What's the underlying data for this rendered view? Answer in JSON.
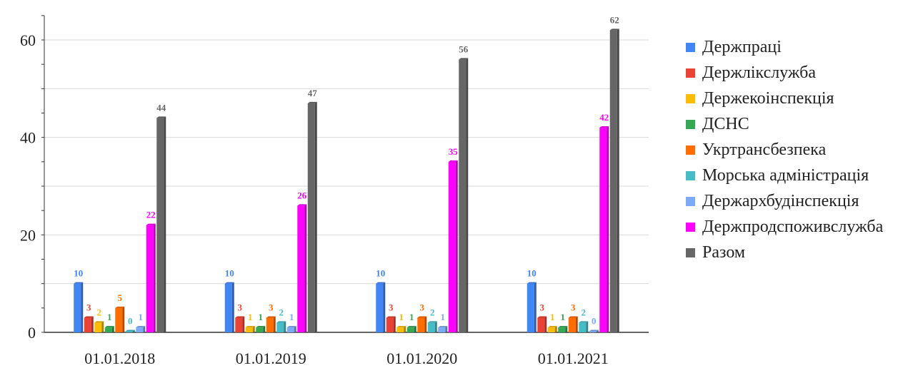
{
  "chart_data": {
    "type": "bar",
    "categories": [
      "01.01.2018",
      "01.01.2019",
      "01.01.2020",
      "01.01.2021"
    ],
    "yticks": [
      "0",
      "20",
      "40",
      "60"
    ],
    "ylim": [
      0,
      65
    ],
    "grid": true,
    "legend_position": "right",
    "series": [
      {
        "name": "Держпраці",
        "color": "#4285f4",
        "values": [
          10,
          10,
          10,
          10
        ],
        "labels": [
          "10",
          "10",
          "10",
          "10"
        ]
      },
      {
        "name": "Держлікслужба",
        "color": "#ea4335",
        "values": [
          3,
          3,
          3,
          3
        ],
        "labels": [
          "3",
          "3",
          "3",
          "3"
        ]
      },
      {
        "name": "Держекоінспекція",
        "color": "#fbbc04",
        "values": [
          2,
          1,
          1,
          1
        ],
        "labels": [
          "2",
          "1",
          "1",
          "1"
        ]
      },
      {
        "name": "ДСНС",
        "color": "#34a853",
        "values": [
          1,
          1,
          1,
          1
        ],
        "labels": [
          "1",
          "1",
          "1",
          "1"
        ]
      },
      {
        "name": "Укртрансбезпека",
        "color": "#ff6d01",
        "values": [
          5,
          3,
          3,
          3
        ],
        "labels": [
          "5",
          "3",
          "3",
          "3"
        ]
      },
      {
        "name": "Морська адміністрація",
        "color": "#46bdc6",
        "values": [
          0,
          2,
          2,
          2
        ],
        "labels": [
          "0",
          "2",
          "2",
          "2"
        ]
      },
      {
        "name": "Держархбудінспекція",
        "color": "#7baaf7",
        "values": [
          1,
          1,
          1,
          0
        ],
        "labels": [
          "1",
          "1",
          "1",
          "0"
        ]
      },
      {
        "name": "Держпродспоживслужба",
        "color": "#ff00ff",
        "values": [
          22,
          26,
          35,
          42
        ],
        "labels": [
          "22",
          "26",
          "35",
          "42"
        ]
      },
      {
        "name": "Разом",
        "color": "#666666",
        "values": [
          44,
          47,
          56,
          62
        ],
        "labels": [
          "44",
          "47",
          "56",
          "62"
        ]
      }
    ]
  }
}
